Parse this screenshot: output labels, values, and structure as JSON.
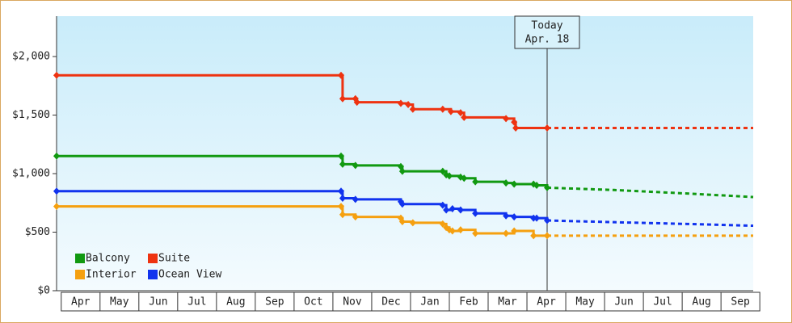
{
  "chart_data": {
    "type": "step",
    "categories": [
      "Apr",
      "May",
      "Jun",
      "Jul",
      "Aug",
      "Sep",
      "Oct",
      "Nov",
      "Dec",
      "Jan",
      "Feb",
      "Mar",
      "Apr",
      "May",
      "Jun",
      "Jul",
      "Aug",
      "Sep"
    ],
    "xlim": [
      -0.12,
      17.83
    ],
    "ylim": [
      0,
      2345
    ],
    "yticks": [
      {
        "value": 0,
        "label": "$0"
      },
      {
        "value": 500,
        "label": "$500"
      },
      {
        "value": 1000,
        "label": "$1,000"
      },
      {
        "value": 1500,
        "label": "$1,500"
      },
      {
        "value": 2000,
        "label": "$2,000"
      }
    ],
    "today_x": 12.52,
    "today_label": "Today",
    "today_date": "Apr. 18",
    "series": [
      {
        "name": "Balcony",
        "color": "#119911",
        "x": [
          -0.12,
          7.21,
          7.25,
          7.58,
          8.75,
          8.79,
          9.83,
          9.92,
          10.0,
          10.29,
          10.38,
          10.67,
          11.46,
          11.67,
          12.17,
          12.25,
          12.52
        ],
        "values": [
          1150,
          1150,
          1080,
          1070,
          1060,
          1020,
          1020,
          990,
          980,
          970,
          960,
          930,
          920,
          910,
          910,
          900,
          880
        ],
        "forecast": {
          "x": [
            12.52,
            14.25,
            16.13,
            17.83
          ],
          "values": [
            880,
            860,
            830,
            800
          ]
        }
      },
      {
        "name": "Suite",
        "color": "#ee3311",
        "x": [
          -0.12,
          7.21,
          7.25,
          7.58,
          7.62,
          8.75,
          8.94,
          9.06,
          9.83,
          10.04,
          10.29,
          10.38,
          11.46,
          11.67,
          11.71,
          12.52
        ],
        "values": [
          1840,
          1840,
          1640,
          1640,
          1610,
          1600,
          1590,
          1550,
          1550,
          1530,
          1520,
          1480,
          1470,
          1440,
          1390,
          1390
        ],
        "forecast": {
          "x": [
            12.52,
            17.83
          ],
          "values": [
            1390,
            1390
          ]
        }
      },
      {
        "name": "Interior",
        "color": "#f5a010",
        "x": [
          -0.12,
          7.21,
          7.25,
          7.58,
          8.75,
          8.79,
          9.06,
          9.83,
          9.92,
          10.0,
          10.08,
          10.29,
          10.67,
          11.46,
          11.67,
          12.17,
          12.52
        ],
        "values": [
          720,
          720,
          650,
          630,
          620,
          590,
          580,
          570,
          540,
          520,
          510,
          520,
          490,
          490,
          510,
          470,
          470
        ],
        "forecast": {
          "x": [
            12.52,
            17.83
          ],
          "values": [
            470,
            470
          ]
        }
      },
      {
        "name": "Ocean View",
        "color": "#1133ee",
        "x": [
          -0.12,
          7.21,
          7.25,
          7.58,
          8.75,
          8.79,
          9.83,
          9.92,
          10.08,
          10.29,
          10.67,
          11.46,
          11.67,
          12.17,
          12.25,
          12.52
        ],
        "values": [
          850,
          850,
          790,
          780,
          760,
          740,
          730,
          690,
          700,
          690,
          660,
          640,
          630,
          620,
          620,
          600
        ],
        "forecast": {
          "x": [
            12.52,
            14.25,
            16.13,
            17.83
          ],
          "values": [
            600,
            585,
            570,
            555
          ]
        }
      }
    ]
  }
}
